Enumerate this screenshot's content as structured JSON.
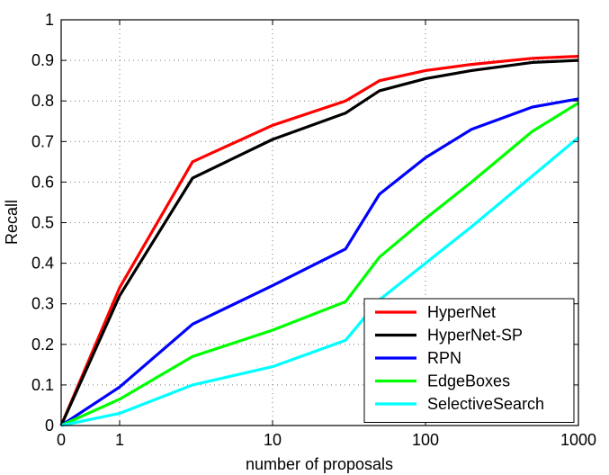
{
  "chart_data": {
    "type": "line",
    "title": "",
    "xlabel": "number of proposals",
    "ylabel": "Recall",
    "x_ticks": [
      "0",
      "1",
      "10",
      "100",
      "1000"
    ],
    "x_tick_values": [
      0,
      1,
      10,
      100,
      1000
    ],
    "y_ticks": [
      "0",
      "0.1",
      "0.2",
      "0.3",
      "0.4",
      "0.5",
      "0.6",
      "0.7",
      "0.8",
      "0.9",
      "1"
    ],
    "ylim": [
      0,
      1
    ],
    "x_scale": "log (with 0 at origin)",
    "grid": true,
    "legend_position": "bottom-right",
    "series": [
      {
        "name": "HyperNet",
        "color": "#ff0000",
        "x": [
          0,
          1,
          3,
          10,
          30,
          50,
          100,
          200,
          500,
          1000
        ],
        "y": [
          0,
          0.34,
          0.65,
          0.74,
          0.8,
          0.85,
          0.875,
          0.89,
          0.905,
          0.91
        ]
      },
      {
        "name": "HyperNet-SP",
        "color": "#000000",
        "x": [
          0,
          1,
          3,
          10,
          30,
          50,
          100,
          200,
          500,
          1000
        ],
        "y": [
          0,
          0.32,
          0.61,
          0.705,
          0.77,
          0.825,
          0.855,
          0.875,
          0.895,
          0.9
        ]
      },
      {
        "name": "RPN",
        "color": "#0000ff",
        "x": [
          0,
          1,
          3,
          10,
          30,
          50,
          100,
          200,
          500,
          1000
        ],
        "y": [
          0,
          0.095,
          0.25,
          0.345,
          0.435,
          0.57,
          0.66,
          0.73,
          0.785,
          0.805
        ]
      },
      {
        "name": "EdgeBoxes",
        "color": "#00ff00",
        "x": [
          0,
          1,
          3,
          10,
          30,
          50,
          100,
          200,
          500,
          1000
        ],
        "y": [
          0,
          0.065,
          0.17,
          0.235,
          0.305,
          0.415,
          0.51,
          0.6,
          0.725,
          0.795
        ]
      },
      {
        "name": "SelectiveSearch",
        "color": "#00ffff",
        "x": [
          0,
          1,
          3,
          10,
          30,
          50,
          100,
          200,
          500,
          1000
        ],
        "y": [
          0,
          0.03,
          0.1,
          0.145,
          0.21,
          0.31,
          0.4,
          0.49,
          0.615,
          0.71
        ]
      }
    ]
  }
}
